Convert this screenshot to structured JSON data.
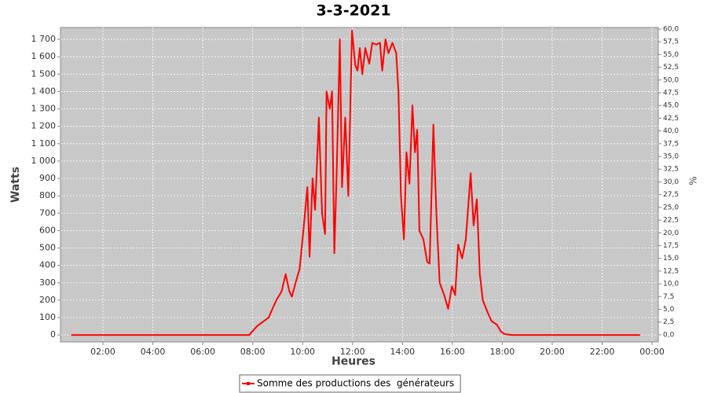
{
  "chart_data": {
    "type": "line",
    "title": "3-3-2021",
    "xlabel": "Heures",
    "ylabel": "Watts",
    "y2label": "%",
    "x": [
      0.73,
      7.86,
      8.17,
      8.64,
      8.79,
      8.95,
      9.16,
      9.32,
      9.47,
      9.57,
      9.72,
      9.88,
      10.03,
      10.19,
      10.28,
      10.4,
      10.5,
      10.65,
      10.78,
      10.9,
      10.96,
      11.09,
      11.18,
      11.27,
      11.36,
      11.49,
      11.58,
      11.71,
      11.83,
      11.98,
      12.11,
      12.2,
      12.29,
      12.39,
      12.51,
      12.67,
      12.79,
      12.95,
      13.1,
      13.19,
      13.32,
      13.44,
      13.6,
      13.75,
      13.84,
      13.94,
      14.06,
      14.16,
      14.28,
      14.4,
      14.5,
      14.59,
      14.68,
      14.84,
      14.99,
      15.09,
      15.24,
      15.36,
      15.49,
      15.67,
      15.83,
      15.98,
      16.11,
      16.23,
      16.39,
      16.54,
      16.73,
      16.85,
      16.98,
      17.1,
      17.22,
      17.41,
      17.57,
      17.78,
      17.94,
      18.09,
      18.4,
      23.52
    ],
    "series": [
      {
        "name": "Somme des productions des  générateurs",
        "color": "#ff0000",
        "values": [
          0,
          0,
          50,
          100,
          150,
          200,
          250,
          350,
          250,
          220,
          300,
          380,
          600,
          850,
          450,
          900,
          720,
          1250,
          700,
          580,
          1400,
          1300,
          1400,
          470,
          900,
          1700,
          850,
          1250,
          800,
          1750,
          1550,
          1520,
          1650,
          1500,
          1650,
          1560,
          1680,
          1670,
          1680,
          1520,
          1700,
          1620,
          1680,
          1620,
          1400,
          800,
          550,
          1050,
          870,
          1320,
          1050,
          1180,
          600,
          550,
          420,
          410,
          1210,
          700,
          300,
          230,
          150,
          280,
          230,
          520,
          440,
          550,
          930,
          630,
          780,
          350,
          200,
          130,
          80,
          60,
          20,
          5,
          0,
          0
        ]
      }
    ],
    "xlim": [
      0.3,
      24.25
    ],
    "xticks": [
      {
        "value": 2,
        "label": "02:00"
      },
      {
        "value": 4,
        "label": "04:00"
      },
      {
        "value": 6,
        "label": "06:00"
      },
      {
        "value": 8,
        "label": "08:00"
      },
      {
        "value": 10,
        "label": "10:00"
      },
      {
        "value": 12,
        "label": "12:00"
      },
      {
        "value": 14,
        "label": "14:00"
      },
      {
        "value": 16,
        "label": "16:00"
      },
      {
        "value": 18,
        "label": "18:00"
      },
      {
        "value": 20,
        "label": "20:00"
      },
      {
        "value": 22,
        "label": "22:00"
      },
      {
        "value": 24,
        "label": "00:00"
      }
    ],
    "ylim": [
      -40,
      1768
    ],
    "yticks": [
      0,
      100,
      200,
      300,
      400,
      500,
      600,
      700,
      800,
      900,
      {
        "value": 1000,
        "label": "1 000"
      },
      {
        "value": 1100,
        "label": "1 100"
      },
      {
        "value": 1200,
        "label": "1 200"
      },
      {
        "value": 1300,
        "label": "1 300"
      },
      {
        "value": 1400,
        "label": "1 400"
      },
      {
        "value": 1500,
        "label": "1 500"
      },
      {
        "value": 1600,
        "label": "1 600"
      },
      {
        "value": 1700,
        "label": "1 700"
      }
    ],
    "y2lim": [
      -1.4,
      60.3
    ],
    "y2ticks": [
      {
        "value": 0,
        "label": "0,0"
      },
      {
        "value": 2.5,
        "label": "2,5"
      },
      {
        "value": 5,
        "label": "5,0"
      },
      {
        "value": 7.5,
        "label": "7,5"
      },
      {
        "value": 10,
        "label": "10,0"
      },
      {
        "value": 12.5,
        "label": "12,5"
      },
      {
        "value": 15,
        "label": "15,0"
      },
      {
        "value": 17.5,
        "label": "17,5"
      },
      {
        "value": 20,
        "label": "20,0"
      },
      {
        "value": 22.5,
        "label": "22,5"
      },
      {
        "value": 25,
        "label": "25,0"
      },
      {
        "value": 27.5,
        "label": "27,5"
      },
      {
        "value": 30,
        "label": "30,0"
      },
      {
        "value": 32.5,
        "label": "32,5"
      },
      {
        "value": 35,
        "label": "35,0"
      },
      {
        "value": 37.5,
        "label": "37,5"
      },
      {
        "value": 40,
        "label": "40,0"
      },
      {
        "value": 42.5,
        "label": "42,5"
      },
      {
        "value": 45,
        "label": "45,0"
      },
      {
        "value": 47.5,
        "label": "47,5"
      },
      {
        "value": 50,
        "label": "50,0"
      },
      {
        "value": 52.5,
        "label": "52,5"
      },
      {
        "value": 55,
        "label": "55,0"
      },
      {
        "value": 57.5,
        "label": "57,5"
      },
      {
        "value": 60,
        "label": "60,0"
      }
    ],
    "grid": true,
    "background": "#c8c8c8",
    "legend": "bottom"
  }
}
